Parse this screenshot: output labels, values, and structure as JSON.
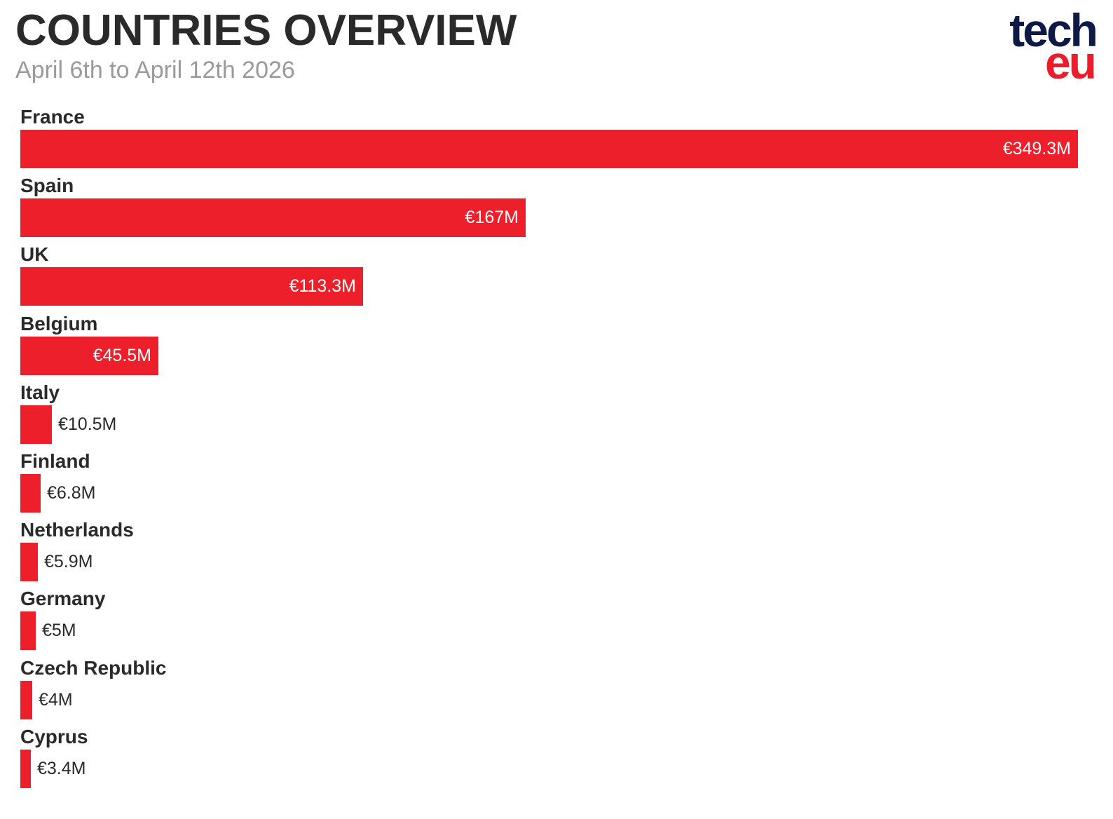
{
  "header": {
    "title": "COUNTRIES OVERVIEW",
    "subtitle": "April 6th to April 12th 2026"
  },
  "logo": {
    "line1": "tech",
    "line2": "eu"
  },
  "colors": {
    "bar": "#ec1f2b",
    "title": "#2a2a2a",
    "subtitle": "#9a9a9a",
    "logo_navy": "#0e1a45",
    "logo_red": "#ec1c2a"
  },
  "chart_data": {
    "type": "bar",
    "orientation": "horizontal",
    "title": "COUNTRIES OVERVIEW",
    "subtitle": "April 6th to April 12th 2026",
    "unit": "€M",
    "categories": [
      "France",
      "Spain",
      "UK",
      "Belgium",
      "Italy",
      "Finland",
      "Netherlands",
      "Germany",
      "Czech Republic",
      "Cyprus"
    ],
    "values": [
      349.3,
      167,
      113.3,
      45.5,
      10.5,
      6.8,
      5.9,
      5,
      4,
      3.4
    ],
    "value_labels": [
      "€349.3M",
      "€167M",
      "€113.3M",
      "€45.5M",
      "€10.5M",
      "€6.8M",
      "€5.9M",
      "€5M",
      "€4M",
      "€3.4M"
    ],
    "xlim": [
      0,
      349.3
    ],
    "grid": false,
    "legend": "none"
  }
}
